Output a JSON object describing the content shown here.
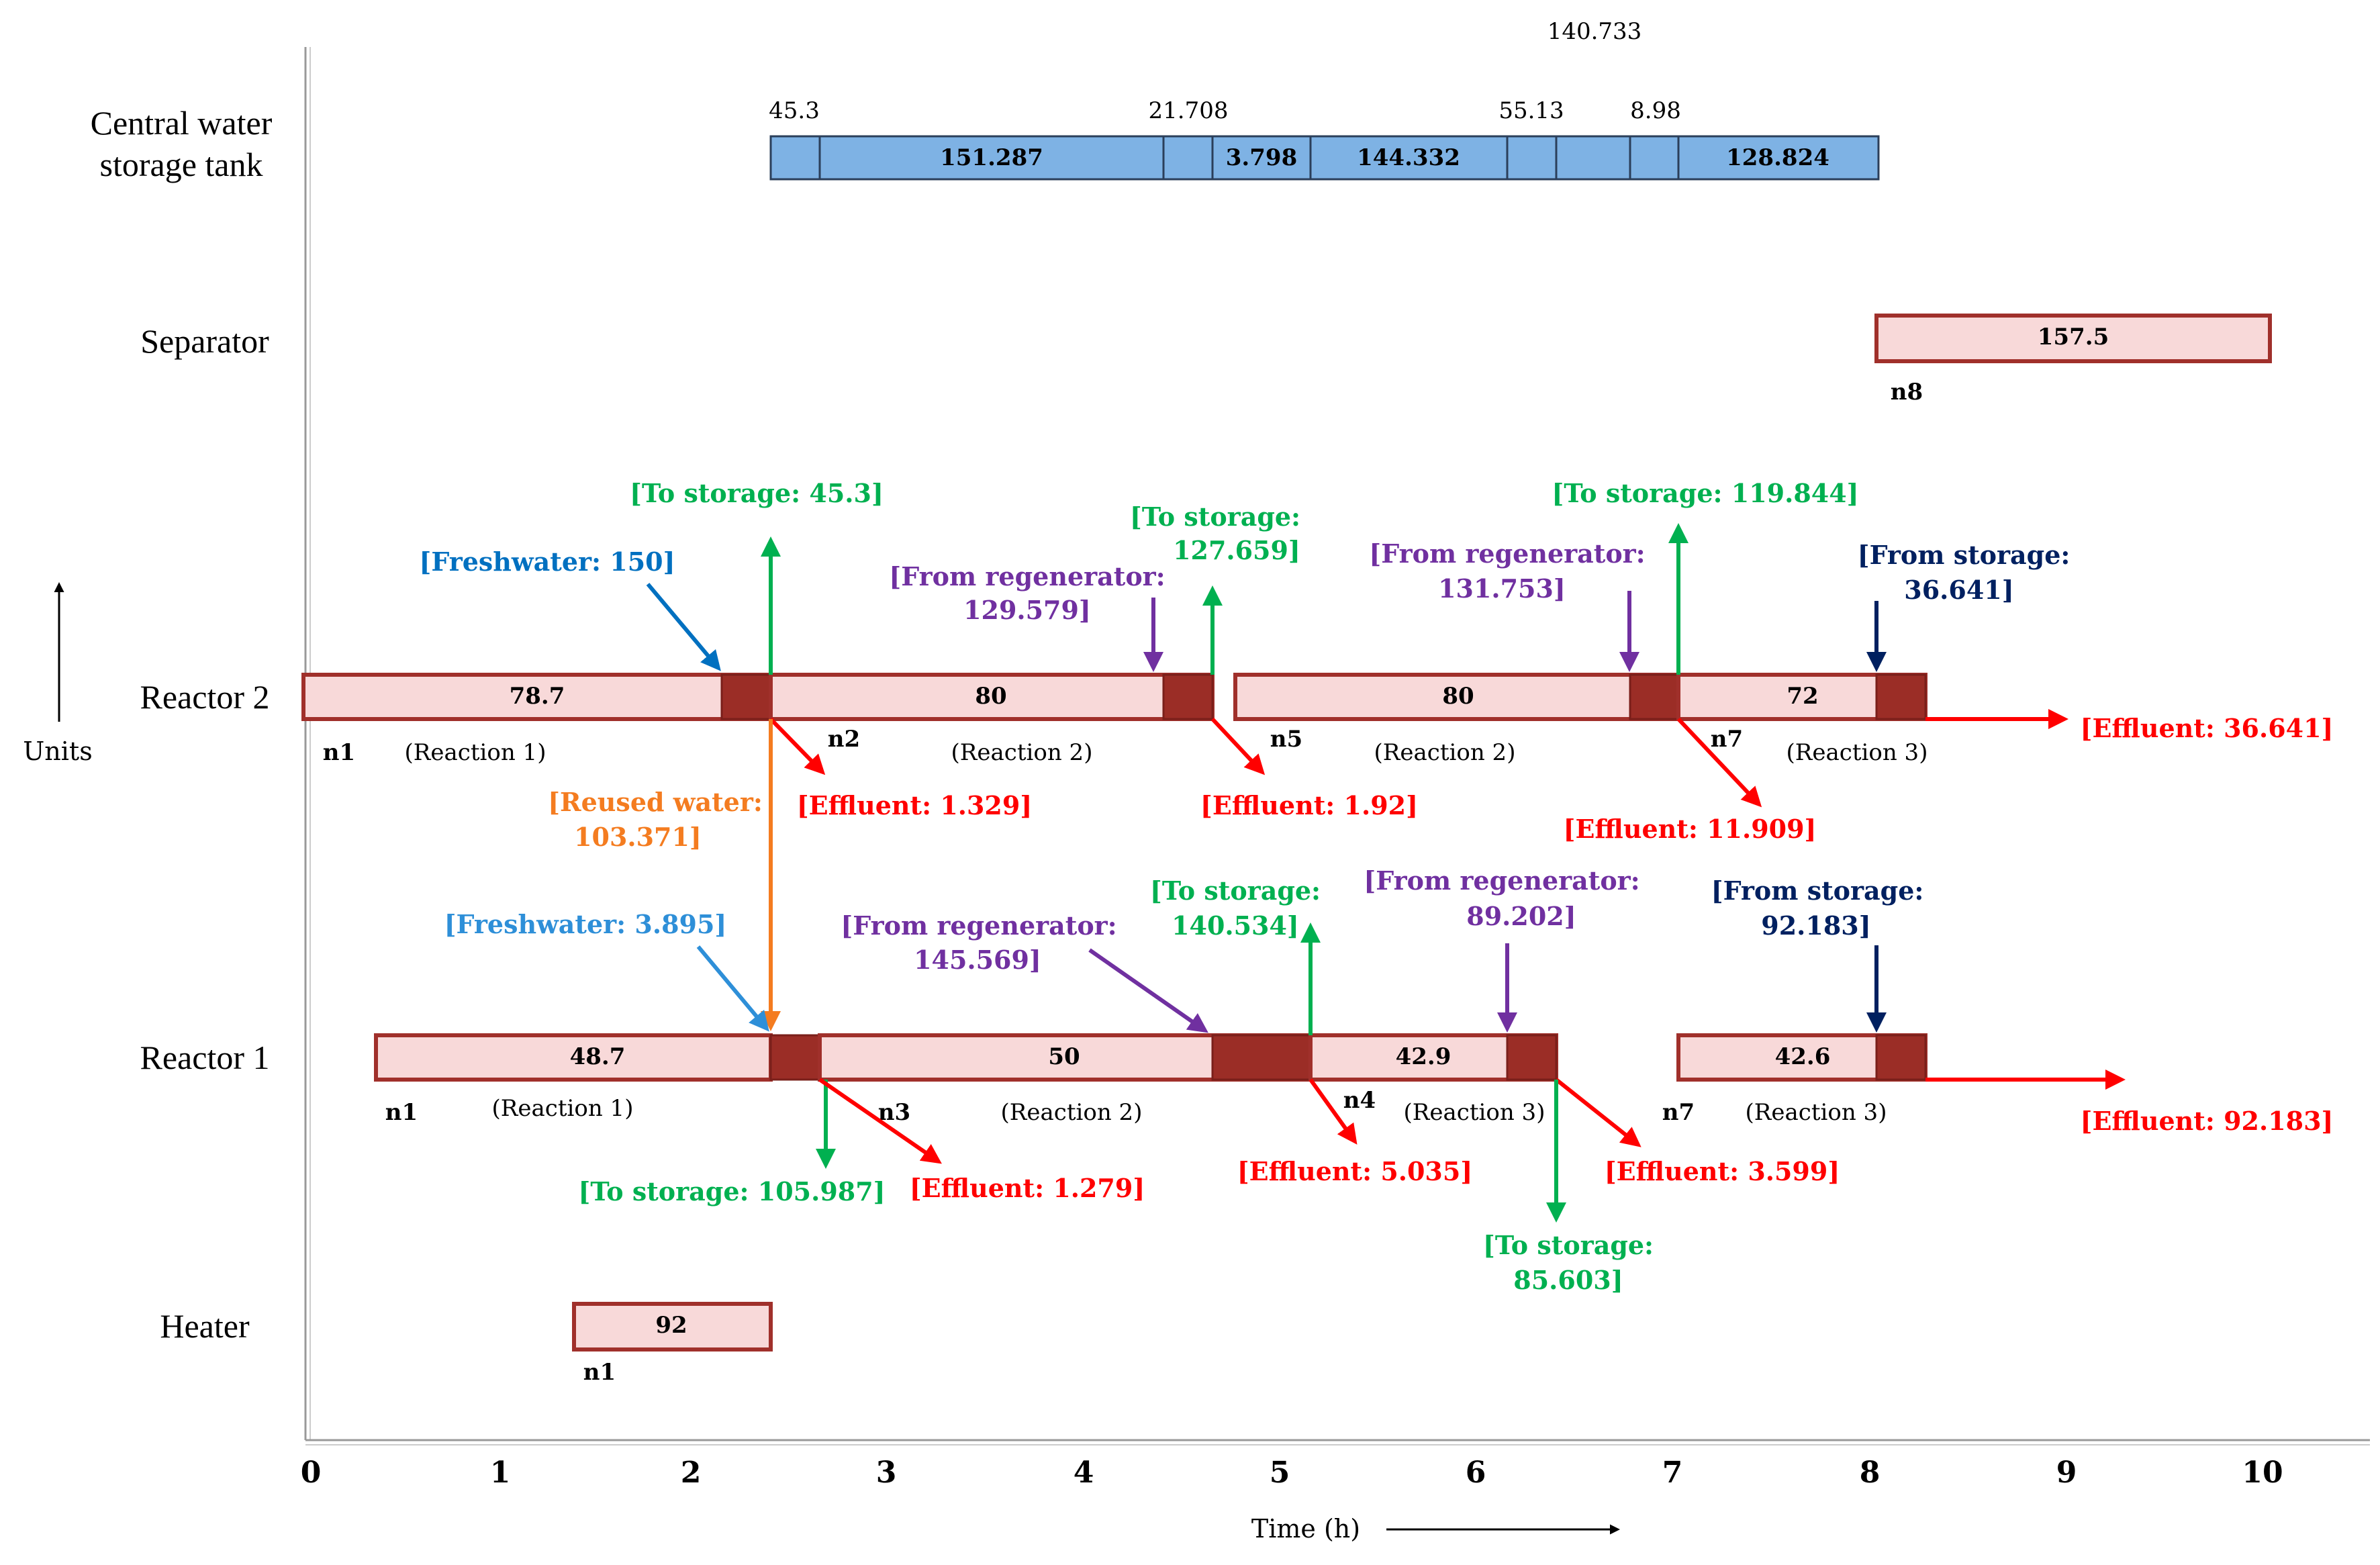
{
  "axis": {
    "x_label": "Time (h)",
    "y_label": "Units",
    "ticks": [
      "0",
      "1",
      "2",
      "3",
      "4",
      "5",
      "6",
      "7",
      "8",
      "9",
      "10"
    ]
  },
  "units": {
    "tank": [
      "Central water",
      "storage tank"
    ],
    "separator": "Separator",
    "reactor2": "Reactor 2",
    "reactor1": "Reactor 1",
    "heater": "Heater"
  },
  "tank": {
    "values": [
      "151.287",
      "3.798",
      "144.332",
      "128.824"
    ],
    "top_labels": [
      "45.3",
      "21.708",
      "55.13",
      "8.98"
    ],
    "high_label": "140.733"
  },
  "bars": {
    "separator": "157.5",
    "r2_a": "78.7",
    "r2_b": "80",
    "r2_c": "80",
    "r2_d": "72",
    "r1_a": "48.7",
    "r1_b": "50",
    "r1_c": "42.9",
    "r1_d": "42.6",
    "heater": "92"
  },
  "nodes": {
    "n8": "n8",
    "r2_n1": "n1",
    "r2_n2": "n2",
    "r2_n5": "n5",
    "r2_n7": "n7",
    "r1_n1": "n1",
    "r1_n3": "n3",
    "r1_n4": "n4",
    "r1_n7": "n7",
    "heater_n1": "n1"
  },
  "reactions": {
    "r2_1": "(Reaction 1)",
    "r2_2": "(Reaction 2)",
    "r2_3": "(Reaction 2)",
    "r2_4": "(Reaction 3)",
    "r1_1": "(Reaction 1)",
    "r1_2": "(Reaction 2)",
    "r1_3": "(Reaction 3)",
    "r1_4": "(Reaction 3)"
  },
  "annotations": {
    "r2_to_storage_1": "[To storage: 45.3]",
    "r2_freshwater_1": "[Freshwater: 150]",
    "r2_to_storage_2a": "[To storage:",
    "r2_to_storage_2b": "127.659]",
    "r2_from_regen_1a": "[From regenerator:",
    "r2_from_regen_1b": "129.579]",
    "r2_to_storage_3": "[To storage: 119.844]",
    "r2_from_regen_2a": "[From regenerator:",
    "r2_from_regen_2b": "131.753]",
    "r2_from_storage_a": "[From storage:",
    "r2_from_storage_b": "36.641]",
    "r2_effluent_1": "[Effluent: 1.329]",
    "r2_effluent_2": "[Effluent: 1.92]",
    "r2_effluent_3": "[Effluent: 11.909]",
    "r2_effluent_4": "[Effluent: 36.641]",
    "reused_a": "[Reused water:",
    "reused_b": "103.371]",
    "r1_freshwater": "[Freshwater: 3.895]",
    "r1_from_regen_1a": "[From regenerator:",
    "r1_from_regen_1b": "145.569]",
    "r1_to_storage_1a": "[To storage:",
    "r1_to_storage_1b": "140.534]",
    "r1_from_regen_2a": "[From regenerator:",
    "r1_from_regen_2b": "89.202]",
    "r1_from_storage_a": "[From storage:",
    "r1_from_storage_b": "92.183]",
    "r1_to_storage_2": "[To storage: 105.987]",
    "r1_effluent_1": "[Effluent: 1.279]",
    "r1_effluent_2": "[Effluent: 5.035]",
    "r1_effluent_3": "[Effluent: 3.599]",
    "r1_effluent_4": "[Effluent: 92.183]",
    "r1_to_storage_3a": "[To storage:",
    "r1_to_storage_3b": "85.603]"
  },
  "colors": {
    "bar_fill": "#F8D9D9",
    "bar_stroke": "#A0302B",
    "block": "#9B2D26",
    "tank_fill": "#7EB2E4",
    "tank_stroke": "#2B3F5A",
    "green": "#00B050",
    "red": "#FF0000",
    "purple": "#7030A0",
    "blue": "#0070C0",
    "light_blue": "#2E8FD8",
    "navy": "#002060",
    "orange": "#F47C20"
  }
}
